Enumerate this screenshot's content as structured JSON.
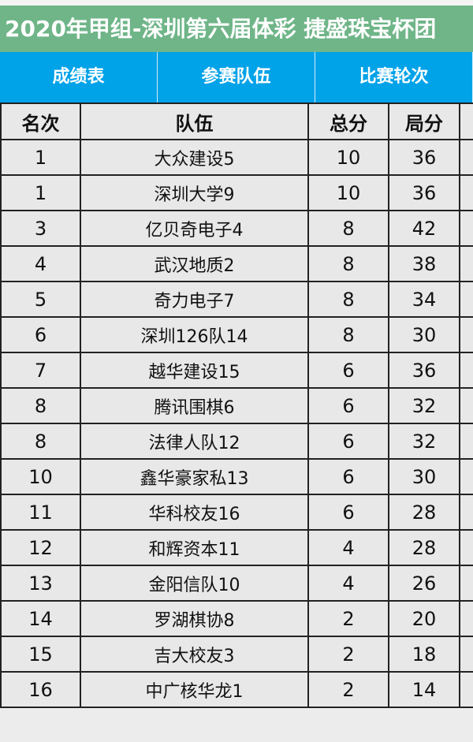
{
  "title": "2020年甲组-深圳第六届体彩 捷盛珠宝杯团",
  "tabs": [
    "成绩表",
    "参赛队伍",
    "比赛轮次"
  ],
  "columns": [
    "名次",
    "队伍",
    "总分",
    "局分"
  ],
  "rows": [
    [
      "1",
      "大众建设5",
      "10",
      "36"
    ],
    [
      "1",
      "深圳大学9",
      "10",
      "36"
    ],
    [
      "3",
      "亿贝奇电子4",
      "8",
      "42"
    ],
    [
      "4",
      "武汉地质2",
      "8",
      "38"
    ],
    [
      "5",
      "奇力电子7",
      "8",
      "34"
    ],
    [
      "6",
      "深圳126队14",
      "8",
      "30"
    ],
    [
      "7",
      "越华建设15",
      "6",
      "36"
    ],
    [
      "8",
      "腾讯围棋6",
      "6",
      "32"
    ],
    [
      "8",
      "法律人队12",
      "6",
      "32"
    ],
    [
      "10",
      "鑫华豪家私13",
      "6",
      "30"
    ],
    [
      "11",
      "华科校友16",
      "6",
      "28"
    ],
    [
      "12",
      "和辉资本11",
      "4",
      "28"
    ],
    [
      "13",
      "金阳信队10",
      "4",
      "26"
    ],
    [
      "14",
      "罗湖棋协8",
      "2",
      "20"
    ],
    [
      "15",
      "吉大校友3",
      "2",
      "18"
    ],
    [
      "16",
      "中广核华龙1",
      "2",
      "14"
    ]
  ]
}
